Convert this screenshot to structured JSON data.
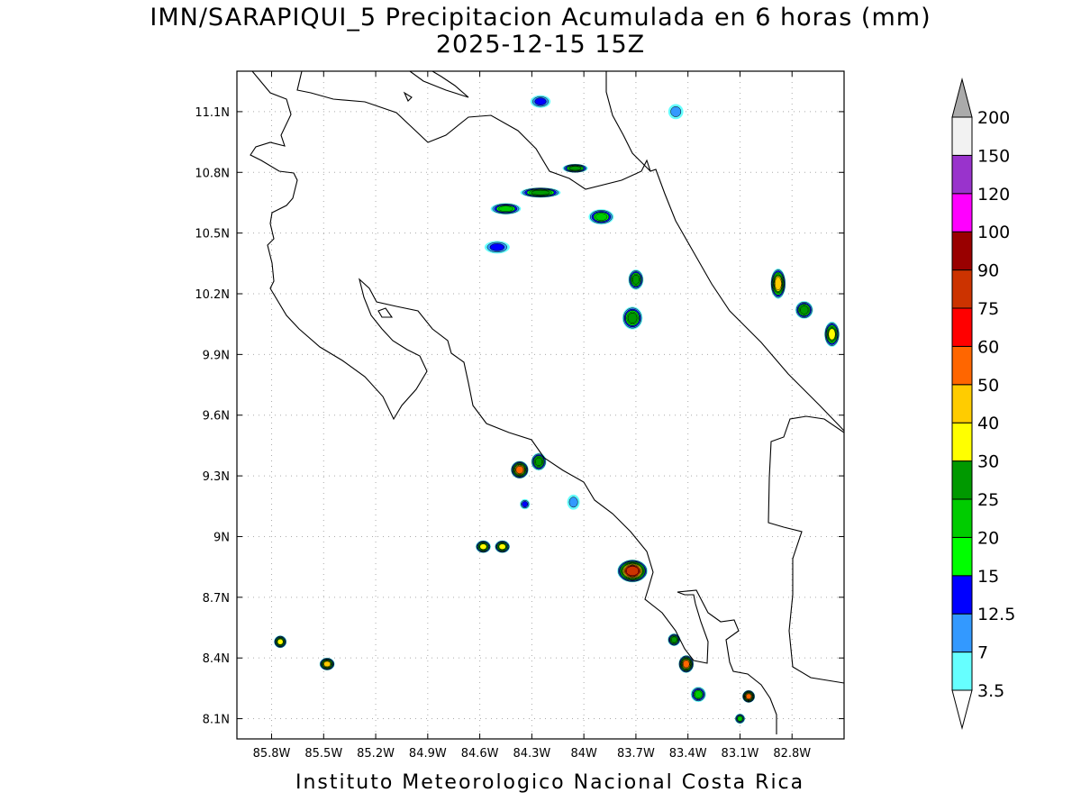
{
  "title": {
    "line1": "IMN/SARAPIQUI_5 Precipitacion Acumulada en 6 horas (mm)",
    "line2": "2025-12-15 15Z"
  },
  "footer": "Instituto Meteorologico Nacional Costa Rica",
  "map": {
    "lon_range": [
      -86.0,
      -82.5
    ],
    "lat_range": [
      8.0,
      11.3
    ],
    "lat_ticks": [
      {
        "value": 11.1,
        "label": "11.1N"
      },
      {
        "value": 10.8,
        "label": "10.8N"
      },
      {
        "value": 10.5,
        "label": "10.5N"
      },
      {
        "value": 10.2,
        "label": "10.2N"
      },
      {
        "value": 9.9,
        "label": "9.9N"
      },
      {
        "value": 9.6,
        "label": "9.6N"
      },
      {
        "value": 9.3,
        "label": "9.3N"
      },
      {
        "value": 9.0,
        "label": "9N"
      },
      {
        "value": 8.7,
        "label": "8.7N"
      },
      {
        "value": 8.4,
        "label": "8.4N"
      },
      {
        "value": 8.1,
        "label": "8.1N"
      }
    ],
    "lon_ticks": [
      {
        "value": -85.8,
        "label": "85.8W"
      },
      {
        "value": -85.5,
        "label": "85.5W"
      },
      {
        "value": -85.2,
        "label": "85.2W"
      },
      {
        "value": -84.9,
        "label": "84.9W"
      },
      {
        "value": -84.6,
        "label": "84.6W"
      },
      {
        "value": -84.3,
        "label": "84.3W"
      },
      {
        "value": -84.0,
        "label": "84W"
      },
      {
        "value": -83.7,
        "label": "83.7W"
      },
      {
        "value": -83.4,
        "label": "83.4W"
      },
      {
        "value": -83.1,
        "label": "83.1W"
      },
      {
        "value": -82.8,
        "label": "82.8W"
      }
    ],
    "grid": true
  },
  "colorbar": {
    "levels": [
      "3.5",
      "7",
      "12.5",
      "15",
      "20",
      "25",
      "30",
      "40",
      "50",
      "60",
      "75",
      "90",
      "100",
      "120",
      "150",
      "200"
    ],
    "colors": [
      "#66ffff",
      "#3399ff",
      "#0000ff",
      "#00ff00",
      "#00cc00",
      "#009900",
      "#ffff00",
      "#ffcc00",
      "#ff6600",
      "#ff0000",
      "#cc3300",
      "#990000",
      "#ff00ff",
      "#9933cc",
      "#f2f2f2",
      "#aaaaaa"
    ]
  },
  "precip_cells": [
    {
      "lon": -84.45,
      "lat": 10.62,
      "level": 4,
      "rx": 1.2,
      "ry": 0.45
    },
    {
      "lon": -84.25,
      "lat": 10.7,
      "level": 5,
      "rx": 1.6,
      "ry": 0.4
    },
    {
      "lon": -84.05,
      "lat": 10.82,
      "level": 5,
      "rx": 1.0,
      "ry": 0.35
    },
    {
      "lon": -83.9,
      "lat": 10.58,
      "level": 4,
      "rx": 1.0,
      "ry": 0.6
    },
    {
      "lon": -84.5,
      "lat": 10.43,
      "level": 2,
      "rx": 1.0,
      "ry": 0.5
    },
    {
      "lon": -83.7,
      "lat": 10.27,
      "level": 5,
      "rx": 0.6,
      "ry": 0.8
    },
    {
      "lon": -83.72,
      "lat": 10.08,
      "level": 5,
      "rx": 0.8,
      "ry": 0.9
    },
    {
      "lon": -82.88,
      "lat": 10.25,
      "level": 7,
      "rx": 0.6,
      "ry": 1.2
    },
    {
      "lon": -82.73,
      "lat": 10.12,
      "level": 5,
      "rx": 0.7,
      "ry": 0.7
    },
    {
      "lon": -82.57,
      "lat": 10.0,
      "level": 6,
      "rx": 0.6,
      "ry": 1.0
    },
    {
      "lon": -84.37,
      "lat": 9.33,
      "level": 8,
      "rx": 0.7,
      "ry": 0.7
    },
    {
      "lon": -84.26,
      "lat": 9.37,
      "level": 5,
      "rx": 0.6,
      "ry": 0.7
    },
    {
      "lon": -84.34,
      "lat": 9.16,
      "level": 2,
      "rx": 0.4,
      "ry": 0.4
    },
    {
      "lon": -84.06,
      "lat": 9.17,
      "level": 1,
      "rx": 0.5,
      "ry": 0.6
    },
    {
      "lon": -84.58,
      "lat": 8.95,
      "level": 6,
      "rx": 0.6,
      "ry": 0.5
    },
    {
      "lon": -84.47,
      "lat": 8.95,
      "level": 6,
      "rx": 0.6,
      "ry": 0.5
    },
    {
      "lon": -83.72,
      "lat": 8.83,
      "level": 10,
      "rx": 1.2,
      "ry": 0.9
    },
    {
      "lon": -83.48,
      "lat": 8.49,
      "level": 5,
      "rx": 0.5,
      "ry": 0.5
    },
    {
      "lon": -83.41,
      "lat": 8.37,
      "level": 8,
      "rx": 0.6,
      "ry": 0.7
    },
    {
      "lon": -83.34,
      "lat": 8.22,
      "level": 4,
      "rx": 0.6,
      "ry": 0.6
    },
    {
      "lon": -83.05,
      "lat": 8.21,
      "level": 8,
      "rx": 0.5,
      "ry": 0.5
    },
    {
      "lon": -83.1,
      "lat": 8.1,
      "level": 4,
      "rx": 0.4,
      "ry": 0.4
    },
    {
      "lon": -85.75,
      "lat": 8.48,
      "level": 6,
      "rx": 0.5,
      "ry": 0.5
    },
    {
      "lon": -85.48,
      "lat": 8.37,
      "level": 7,
      "rx": 0.6,
      "ry": 0.5
    },
    {
      "lon": -83.47,
      "lat": 11.1,
      "level": 1,
      "rx": 0.6,
      "ry": 0.6
    },
    {
      "lon": -84.25,
      "lat": 11.15,
      "level": 2,
      "rx": 0.8,
      "ry": 0.5
    }
  ]
}
